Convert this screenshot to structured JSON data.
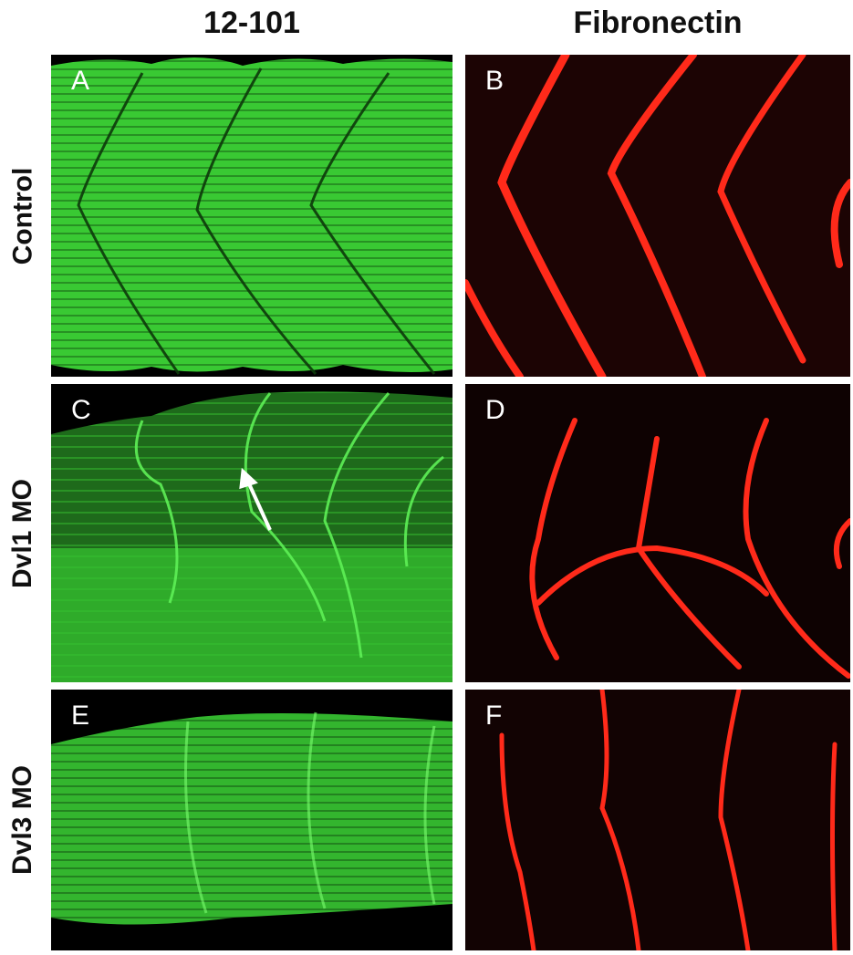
{
  "columns": [
    "12-101",
    "Fibronectin"
  ],
  "rows": [
    "Control",
    "Dvl1 MO",
    "Dvl3 MO"
  ],
  "panels": [
    {
      "label": "A",
      "stain": "12-101",
      "condition": "Control",
      "color": "#3ee03a"
    },
    {
      "label": "B",
      "stain": "Fibronectin",
      "condition": "Control",
      "color": "#ff2a1a"
    },
    {
      "label": "C",
      "stain": "12-101",
      "condition": "Dvl1 MO",
      "color": "#3ee03a"
    },
    {
      "label": "D",
      "stain": "Fibronectin",
      "condition": "Dvl1 MO",
      "color": "#ff2a1a"
    },
    {
      "label": "E",
      "stain": "12-101",
      "condition": "Dvl3 MO",
      "color": "#3ee03a"
    },
    {
      "label": "F",
      "stain": "Fibronectin",
      "condition": "Dvl3 MO",
      "color": "#ff2a1a"
    }
  ],
  "annotations": {
    "arrow": "white arrow in panel C"
  }
}
